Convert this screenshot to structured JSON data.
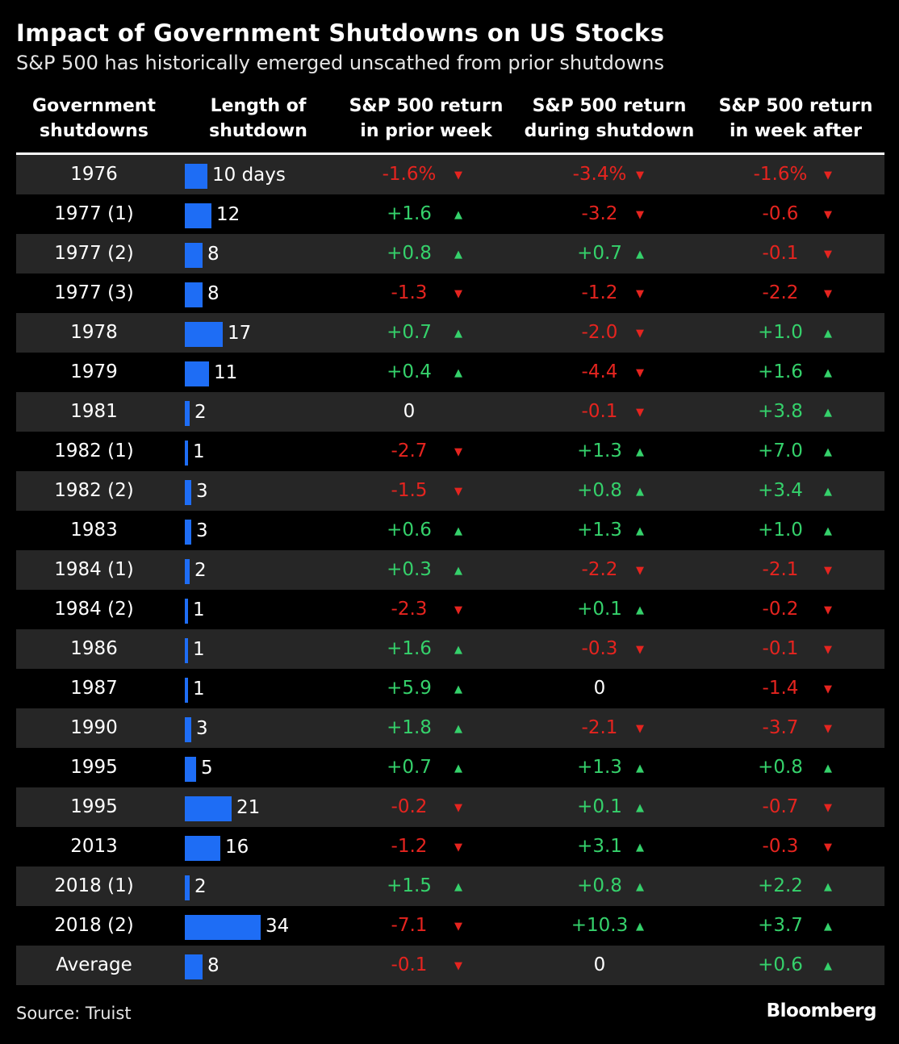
{
  "title": "Impact of Government Shutdowns on US Stocks",
  "subtitle": "S&P 500 has historically emerged unscathed from prior shutdowns",
  "source": "Source: Truist",
  "brand": "Bloomberg",
  "colors": {
    "bar": "#1e6df5",
    "positive": "#35d16b",
    "negative": "#e5241f",
    "row_shade": "#262626",
    "background": "#000000"
  },
  "chart_data": {
    "type": "table",
    "columns": [
      [
        "Government",
        "shutdowns"
      ],
      [
        "Length of",
        "shutdown"
      ],
      [
        "S&P 500 return",
        "in prior week"
      ],
      [
        "S&P 500 return",
        "during shutdown"
      ],
      [
        "S&P 500 return",
        "in week after"
      ]
    ],
    "rows": [
      {
        "label": "1976",
        "length": 10,
        "length_text": "10 days",
        "prior": "-1.6%",
        "prior_dir": "down",
        "during": "-3.4%",
        "during_dir": "down",
        "after": "-1.6%",
        "after_dir": "down"
      },
      {
        "label": "1977 (1)",
        "length": 12,
        "length_text": "12",
        "prior": "+1.6",
        "prior_dir": "up",
        "during": "-3.2",
        "during_dir": "down",
        "after": "-0.6",
        "after_dir": "down"
      },
      {
        "label": "1977 (2)",
        "length": 8,
        "length_text": "8",
        "prior": "+0.8",
        "prior_dir": "up",
        "during": "+0.7",
        "during_dir": "up",
        "after": "-0.1",
        "after_dir": "down"
      },
      {
        "label": "1977 (3)",
        "length": 8,
        "length_text": "8",
        "prior": "-1.3",
        "prior_dir": "down",
        "during": "-1.2",
        "during_dir": "down",
        "after": "-2.2",
        "after_dir": "down"
      },
      {
        "label": "1978",
        "length": 17,
        "length_text": "17",
        "prior": "+0.7",
        "prior_dir": "up",
        "during": "-2.0",
        "during_dir": "down",
        "after": "+1.0",
        "after_dir": "up"
      },
      {
        "label": "1979",
        "length": 11,
        "length_text": "11",
        "prior": "+0.4",
        "prior_dir": "up",
        "during": "-4.4",
        "during_dir": "down",
        "after": "+1.6",
        "after_dir": "up"
      },
      {
        "label": "1981",
        "length": 2,
        "length_text": "2",
        "prior": "0",
        "prior_dir": "none",
        "during": "-0.1",
        "during_dir": "down",
        "after": "+3.8",
        "after_dir": "up"
      },
      {
        "label": "1982 (1)",
        "length": 1,
        "length_text": "1",
        "prior": "-2.7",
        "prior_dir": "down",
        "during": "+1.3",
        "during_dir": "up",
        "after": "+7.0",
        "after_dir": "up"
      },
      {
        "label": "1982 (2)",
        "length": 3,
        "length_text": "3",
        "prior": "-1.5",
        "prior_dir": "down",
        "during": "+0.8",
        "during_dir": "up",
        "after": "+3.4",
        "after_dir": "up"
      },
      {
        "label": "1983",
        "length": 3,
        "length_text": "3",
        "prior": "+0.6",
        "prior_dir": "up",
        "during": "+1.3",
        "during_dir": "up",
        "after": "+1.0",
        "after_dir": "up"
      },
      {
        "label": "1984 (1)",
        "length": 2,
        "length_text": "2",
        "prior": "+0.3",
        "prior_dir": "up",
        "during": "-2.2",
        "during_dir": "down",
        "after": "-2.1",
        "after_dir": "down"
      },
      {
        "label": "1984 (2)",
        "length": 1,
        "length_text": "1",
        "prior": "-2.3",
        "prior_dir": "down",
        "during": "+0.1",
        "during_dir": "up",
        "after": "-0.2",
        "after_dir": "down"
      },
      {
        "label": "1986",
        "length": 1,
        "length_text": "1",
        "prior": "+1.6",
        "prior_dir": "up",
        "during": "-0.3",
        "during_dir": "down",
        "after": "-0.1",
        "after_dir": "down"
      },
      {
        "label": "1987",
        "length": 1,
        "length_text": "1",
        "prior": "+5.9",
        "prior_dir": "up",
        "during": "0",
        "during_dir": "none",
        "after": "-1.4",
        "after_dir": "down"
      },
      {
        "label": "1990",
        "length": 3,
        "length_text": "3",
        "prior": "+1.8",
        "prior_dir": "up",
        "during": "-2.1",
        "during_dir": "down",
        "after": "-3.7",
        "after_dir": "down"
      },
      {
        "label": "1995",
        "length": 5,
        "length_text": "5",
        "prior": "+0.7",
        "prior_dir": "up",
        "during": "+1.3",
        "during_dir": "up",
        "after": "+0.8",
        "after_dir": "up"
      },
      {
        "label": "1995",
        "length": 21,
        "length_text": "21",
        "prior": "-0.2",
        "prior_dir": "down",
        "during": "+0.1",
        "during_dir": "up",
        "after": "-0.7",
        "after_dir": "down"
      },
      {
        "label": "2013",
        "length": 16,
        "length_text": "16",
        "prior": "-1.2",
        "prior_dir": "down",
        "during": "+3.1",
        "during_dir": "up",
        "after": "-0.3",
        "after_dir": "down"
      },
      {
        "label": "2018 (1)",
        "length": 2,
        "length_text": "2",
        "prior": "+1.5",
        "prior_dir": "up",
        "during": "+0.8",
        "during_dir": "up",
        "after": "+2.2",
        "after_dir": "up"
      },
      {
        "label": "2018 (2)",
        "length": 34,
        "length_text": "34",
        "prior": "-7.1",
        "prior_dir": "down",
        "during": "+10.3",
        "during_dir": "up",
        "after": "+3.7",
        "after_dir": "up"
      },
      {
        "label": "Average",
        "length": 8,
        "length_text": "8",
        "prior": "-0.1",
        "prior_dir": "down",
        "during": "0",
        "during_dir": "none",
        "after": "+0.6",
        "after_dir": "up"
      }
    ]
  }
}
